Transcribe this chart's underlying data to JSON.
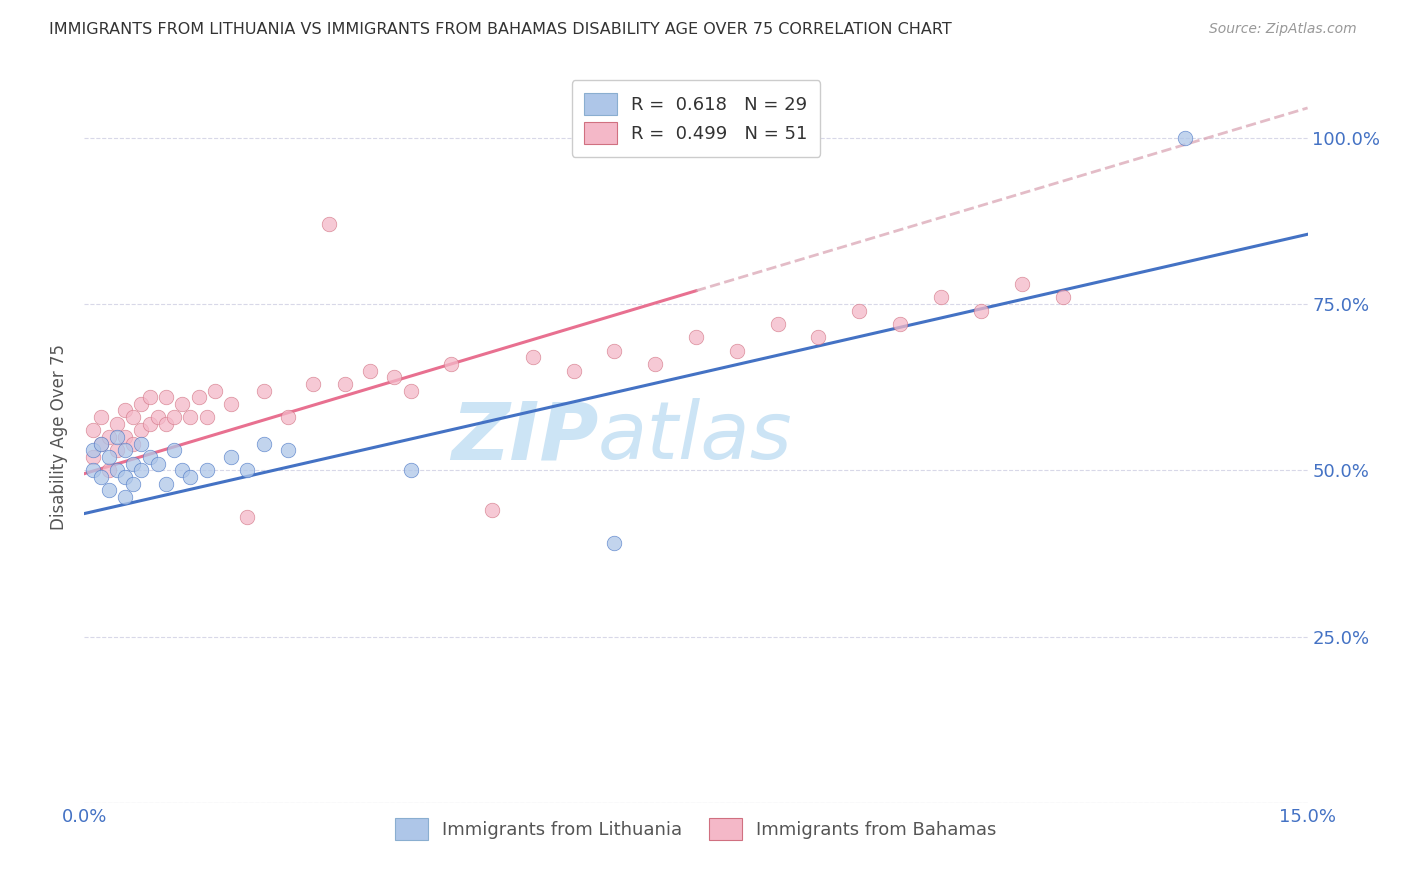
{
  "title": "IMMIGRANTS FROM LITHUANIA VS IMMIGRANTS FROM BAHAMAS DISABILITY AGE OVER 75 CORRELATION CHART",
  "source": "Source: ZipAtlas.com",
  "ylabel_label": "Disability Age Over 75",
  "xmin": 0.0,
  "xmax": 0.15,
  "ymin": 0.0,
  "ymax": 1.1,
  "r_lithuania": 0.618,
  "n_lithuania": 29,
  "r_bahamas": 0.499,
  "n_bahamas": 51,
  "color_lithuania": "#aec6e8",
  "color_bahamas": "#f4b8c8",
  "line_color_lithuania": "#4472c4",
  "line_color_bahamas": "#e87090",
  "watermark_zip": "ZIP",
  "watermark_atlas": "atlas",
  "watermark_color": "#cce4f5",
  "background_color": "#ffffff",
  "grid_color": "#d8d8e8",
  "title_color": "#333333",
  "axis_color": "#4472c4",
  "lithuania_x": [
    0.001,
    0.001,
    0.002,
    0.002,
    0.003,
    0.003,
    0.004,
    0.004,
    0.005,
    0.005,
    0.005,
    0.006,
    0.006,
    0.007,
    0.007,
    0.008,
    0.009,
    0.01,
    0.011,
    0.012,
    0.013,
    0.015,
    0.018,
    0.02,
    0.022,
    0.025,
    0.04,
    0.065,
    0.135
  ],
  "lithuania_y": [
    0.5,
    0.53,
    0.49,
    0.54,
    0.47,
    0.52,
    0.5,
    0.55,
    0.46,
    0.49,
    0.53,
    0.48,
    0.51,
    0.5,
    0.54,
    0.52,
    0.51,
    0.48,
    0.53,
    0.5,
    0.49,
    0.5,
    0.52,
    0.5,
    0.54,
    0.53,
    0.5,
    0.39,
    1.0
  ],
  "bahamas_x": [
    0.001,
    0.001,
    0.002,
    0.002,
    0.003,
    0.003,
    0.004,
    0.004,
    0.005,
    0.005,
    0.006,
    0.006,
    0.007,
    0.007,
    0.008,
    0.008,
    0.009,
    0.01,
    0.01,
    0.011,
    0.012,
    0.013,
    0.014,
    0.015,
    0.016,
    0.018,
    0.02,
    0.022,
    0.025,
    0.028,
    0.03,
    0.032,
    0.035,
    0.038,
    0.04,
    0.045,
    0.05,
    0.055,
    0.06,
    0.065,
    0.07,
    0.075,
    0.08,
    0.085,
    0.09,
    0.095,
    0.1,
    0.105,
    0.11,
    0.115,
    0.12
  ],
  "bahamas_y": [
    0.52,
    0.56,
    0.54,
    0.58,
    0.5,
    0.55,
    0.53,
    0.57,
    0.55,
    0.59,
    0.54,
    0.58,
    0.56,
    0.6,
    0.57,
    0.61,
    0.58,
    0.57,
    0.61,
    0.58,
    0.6,
    0.58,
    0.61,
    0.58,
    0.62,
    0.6,
    0.43,
    0.62,
    0.58,
    0.63,
    0.87,
    0.63,
    0.65,
    0.64,
    0.62,
    0.66,
    0.44,
    0.67,
    0.65,
    0.68,
    0.66,
    0.7,
    0.68,
    0.72,
    0.7,
    0.74,
    0.72,
    0.76,
    0.74,
    0.78,
    0.76
  ]
}
